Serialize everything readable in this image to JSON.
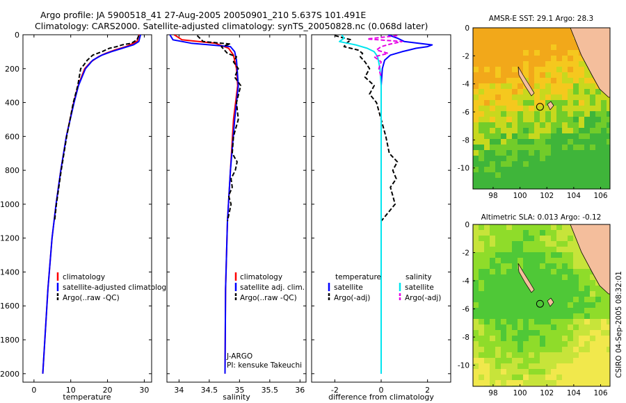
{
  "header": {
    "line1": "Argo profile: JA 5900518_41 27-Aug-2005 20050901_210 5.637S 101.491E",
    "line2": "Climatology: CARS2000. Satellite-adjusted climatology: synTS_20050828.nc (0.068d later)"
  },
  "stamp": "CSIRO 04-Sep-2005 08:32:01",
  "colors": {
    "climatology": "#ff0000",
    "satellite": "#0000ff",
    "argo": "#000000",
    "sat_salt": "#00e5ee",
    "argo_salt": "#e600e6",
    "land": "#f4be9c"
  },
  "chart_data": [
    {
      "type": "line",
      "id": "temperature",
      "xlabel": "temperature",
      "ylim": [
        2050,
        0
      ],
      "xlim": [
        -3,
        32
      ],
      "yticks": [
        "0",
        "200",
        "400",
        "600",
        "800",
        "1000",
        "1200",
        "1400",
        "1600",
        "1800",
        "2000"
      ],
      "xticks": [
        "0",
        "10",
        "20",
        "30"
      ],
      "legend": [
        "climatology",
        "satellite-adjusted climatology",
        "Argo(..raw -QC)"
      ],
      "series": [
        {
          "name": "climatology",
          "depth": [
            0,
            40,
            70,
            90,
            110,
            130,
            160,
            200,
            300,
            400,
            600,
            800,
            1000,
            1200,
            1500,
            2000
          ],
          "values": [
            28.6,
            28.0,
            25,
            22,
            19.5,
            17.5,
            15.5,
            13.8,
            12.0,
            10.8,
            8.8,
            7.3,
            6.0,
            4.9,
            3.8,
            2.4
          ]
        },
        {
          "name": "satellite-adjusted climatology",
          "depth": [
            0,
            40,
            60,
            80,
            100,
            120,
            150,
            200,
            300,
            400,
            600,
            800,
            1000,
            1200,
            1500,
            2000
          ],
          "values": [
            29.0,
            28.5,
            27,
            24,
            21,
            18.5,
            16,
            14,
            12.1,
            10.9,
            8.8,
            7.3,
            6.0,
            4.9,
            3.8,
            2.4
          ]
        },
        {
          "name": "Argo(..raw -QC)",
          "depth": [
            5,
            30,
            50,
            60,
            70,
            80,
            100,
            120,
            150,
            180,
            200,
            300,
            400,
            600,
            800,
            1000,
            1100
          ],
          "values": [
            28.5,
            28.0,
            26.5,
            24,
            22.5,
            20.5,
            18.5,
            16,
            14.5,
            13.5,
            12.7,
            11.9,
            10.7,
            8.9,
            7.4,
            6.1,
            5.6
          ]
        }
      ]
    },
    {
      "type": "line",
      "id": "salinity",
      "xlabel": "salinity",
      "ylim": [
        2050,
        0
      ],
      "xlim": [
        33.8,
        36.1
      ],
      "xticks": [
        "34",
        "34.5",
        "35",
        "35.5",
        "36"
      ],
      "legend": [
        "climatology",
        "satellite adj. clim.",
        "Argo(..raw -QC)"
      ],
      "annotation": [
        "J-ARGO",
        "PI: kensuke Takeuchi"
      ],
      "series": [
        {
          "name": "climatology",
          "depth": [
            0,
            30,
            50,
            80,
            120,
            200,
            300,
            500,
            800,
            1100,
            1500,
            2000
          ],
          "values": [
            33.92,
            34.05,
            34.6,
            34.82,
            34.9,
            34.95,
            34.97,
            34.9,
            34.85,
            34.8,
            34.77,
            34.76
          ]
        },
        {
          "name": "satellite adj. clim.",
          "depth": [
            0,
            30,
            50,
            70,
            100,
            150,
            200,
            300,
            500,
            800,
            1100,
            1500,
            2000
          ],
          "values": [
            33.85,
            33.9,
            34.2,
            34.85,
            34.92,
            34.95,
            34.96,
            34.98,
            34.92,
            34.85,
            34.8,
            34.77,
            34.76
          ]
        },
        {
          "name": "Argo(..raw -QC)",
          "depth": [
            5,
            40,
            55,
            70,
            90,
            110,
            130,
            160,
            200,
            250,
            300,
            400,
            500,
            600,
            700,
            750,
            800,
            850,
            900,
            950,
            1000,
            1100
          ],
          "values": [
            34.3,
            34.4,
            34.85,
            34.7,
            34.75,
            34.8,
            34.95,
            34.9,
            34.98,
            34.92,
            35.02,
            34.95,
            34.98,
            34.9,
            34.88,
            34.96,
            34.93,
            34.86,
            34.88,
            34.82,
            34.86,
            34.8
          ]
        }
      ]
    },
    {
      "type": "line",
      "id": "difference",
      "xlabel": "difference from climatology",
      "ylim": [
        2050,
        0
      ],
      "xlim": [
        -3,
        3
      ],
      "xticks": [
        "-2",
        "0",
        "2"
      ],
      "legend_headers": [
        "temperature",
        "salinity"
      ],
      "legend": [
        "satellite",
        "Argo(-adj)",
        "satellite",
        "Argo(-adj)"
      ],
      "series": [
        {
          "name": "temperature satellite",
          "depth": [
            0,
            20,
            40,
            60,
            70,
            80,
            90,
            100,
            120,
            150,
            200,
            300,
            2000
          ],
          "values": [
            0.3,
            0.7,
            1.0,
            2.2,
            2.0,
            1.5,
            1.2,
            0.9,
            0.4,
            0.15,
            0.05,
            0.0,
            0.0
          ]
        },
        {
          "name": "temperature Argo(-adj)",
          "depth": [
            5,
            30,
            50,
            70,
            90,
            110,
            130,
            160,
            200,
            250,
            300,
            350,
            400,
            500,
            600,
            700,
            750,
            800,
            850,
            900,
            950,
            1000,
            1050,
            1100
          ],
          "values": [
            -2.0,
            -1.3,
            -1.5,
            -1.6,
            -1.0,
            -0.8,
            -0.9,
            -0.7,
            -0.5,
            -0.7,
            -0.3,
            -0.5,
            -0.2,
            0.0,
            0.2,
            0.35,
            0.7,
            0.5,
            0.65,
            0.4,
            0.5,
            0.6,
            0.3,
            0.0
          ]
        },
        {
          "name": "salinity satellite",
          "depth": [
            0,
            20,
            40,
            60,
            80,
            100,
            130,
            200,
            300,
            500,
            800,
            1000,
            1200,
            2000
          ],
          "values": [
            -1.7,
            -1.6,
            -1.8,
            -1.1,
            -0.6,
            -0.3,
            -0.15,
            -0.05,
            0.0,
            0.0,
            0.0,
            0.0,
            0.0,
            0.0
          ]
        },
        {
          "name": "salinity Argo(-adj)",
          "depth": [
            5,
            25,
            40,
            55,
            70,
            90,
            110,
            130,
            160,
            200,
            250
          ],
          "values": [
            0.7,
            -0.6,
            0.9,
            0.4,
            0.0,
            -0.2,
            0.3,
            -0.3,
            0.0,
            -0.1,
            0.0
          ]
        }
      ]
    },
    {
      "type": "heatmap",
      "id": "sst-map",
      "title": "AMSR-E SST: 29.1 Argo: 28.3",
      "xlim": [
        96.5,
        106.7
      ],
      "ylim": [
        -11.5,
        0
      ],
      "xticks": [
        "98",
        "100",
        "102",
        "104",
        "106"
      ],
      "yticks": [
        "0",
        "-2",
        "-4",
        "-6",
        "-8",
        "-10"
      ],
      "argo_position": {
        "lon": 101.491,
        "lat": -5.637
      }
    },
    {
      "type": "heatmap",
      "id": "sla-map",
      "title": "Altimetric SLA: 0.013 Argo: -0.12",
      "xlim": [
        96.5,
        106.7
      ],
      "ylim": [
        -11.5,
        0
      ],
      "xticks": [
        "98",
        "100",
        "102",
        "104",
        "106"
      ],
      "yticks": [
        "0",
        "-2",
        "-4",
        "-6",
        "-8",
        "-10"
      ],
      "argo_position": {
        "lon": 101.491,
        "lat": -5.637
      }
    }
  ]
}
